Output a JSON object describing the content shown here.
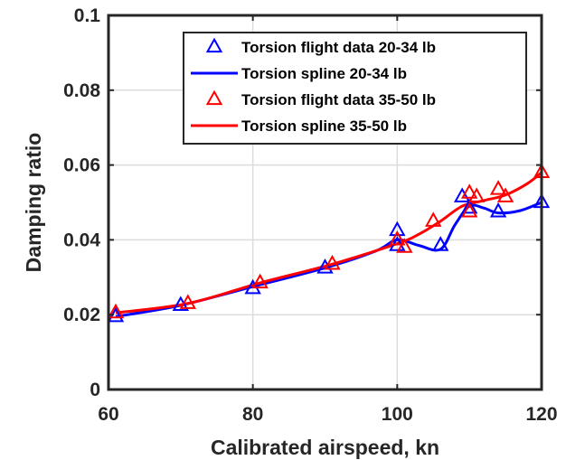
{
  "chart_data": {
    "type": "line",
    "title": "",
    "xlabel": "Calibrated airspeed, kn",
    "ylabel": "Damping ratio",
    "xlim": [
      60,
      120
    ],
    "ylim": [
      0,
      0.1
    ],
    "xticks": [
      60,
      80,
      100,
      120
    ],
    "xtick_labels": [
      "60",
      "80",
      "100",
      "120"
    ],
    "yticks": [
      0,
      0.02,
      0.04,
      0.06,
      0.08,
      0.1
    ],
    "ytick_labels": [
      "0",
      "0.02",
      "0.04",
      "0.06",
      "0.08",
      "0.1"
    ],
    "grid": true,
    "legend_position": "top-right",
    "series": [
      {
        "name": "Torsion flight data 20-34 lb",
        "kind": "scatter",
        "marker": "triangle",
        "color": "#0000ff",
        "x": [
          61,
          70,
          80,
          90,
          100,
          100,
          106,
          109,
          110,
          114,
          120
        ],
        "y": [
          0.0195,
          0.0225,
          0.027,
          0.0325,
          0.0425,
          0.0385,
          0.0385,
          0.0515,
          0.0485,
          0.0475,
          0.05
        ]
      },
      {
        "name": "Torsion spline 20-34 lb",
        "kind": "line",
        "color": "#0000ff",
        "x": [
          61,
          70,
          80,
          90,
          97,
          100,
          103,
          106,
          108,
          110,
          112,
          114,
          117,
          120
        ],
        "y": [
          0.0195,
          0.0225,
          0.0275,
          0.0325,
          0.037,
          0.04,
          0.0385,
          0.0375,
          0.044,
          0.049,
          0.0485,
          0.0472,
          0.0478,
          0.05
        ]
      },
      {
        "name": "Torsion flight data 35-50 lb",
        "kind": "scatter",
        "marker": "triangle",
        "color": "#ff0000",
        "x": [
          61,
          71,
          81,
          91,
          100,
          101,
          105,
          110,
          110,
          111,
          114,
          115,
          120
        ],
        "y": [
          0.0205,
          0.023,
          0.0285,
          0.0335,
          0.04,
          0.038,
          0.045,
          0.0525,
          0.0475,
          0.0515,
          0.0535,
          0.0515,
          0.058
        ]
      },
      {
        "name": "Torsion spline 35-50 lb",
        "kind": "line",
        "color": "#ff0000",
        "x": [
          61,
          71,
          81,
          91,
          100,
          103,
          106,
          109,
          112,
          115,
          118,
          120
        ],
        "y": [
          0.0205,
          0.023,
          0.0285,
          0.0335,
          0.039,
          0.0415,
          0.045,
          0.049,
          0.0505,
          0.052,
          0.055,
          0.058
        ]
      }
    ]
  }
}
